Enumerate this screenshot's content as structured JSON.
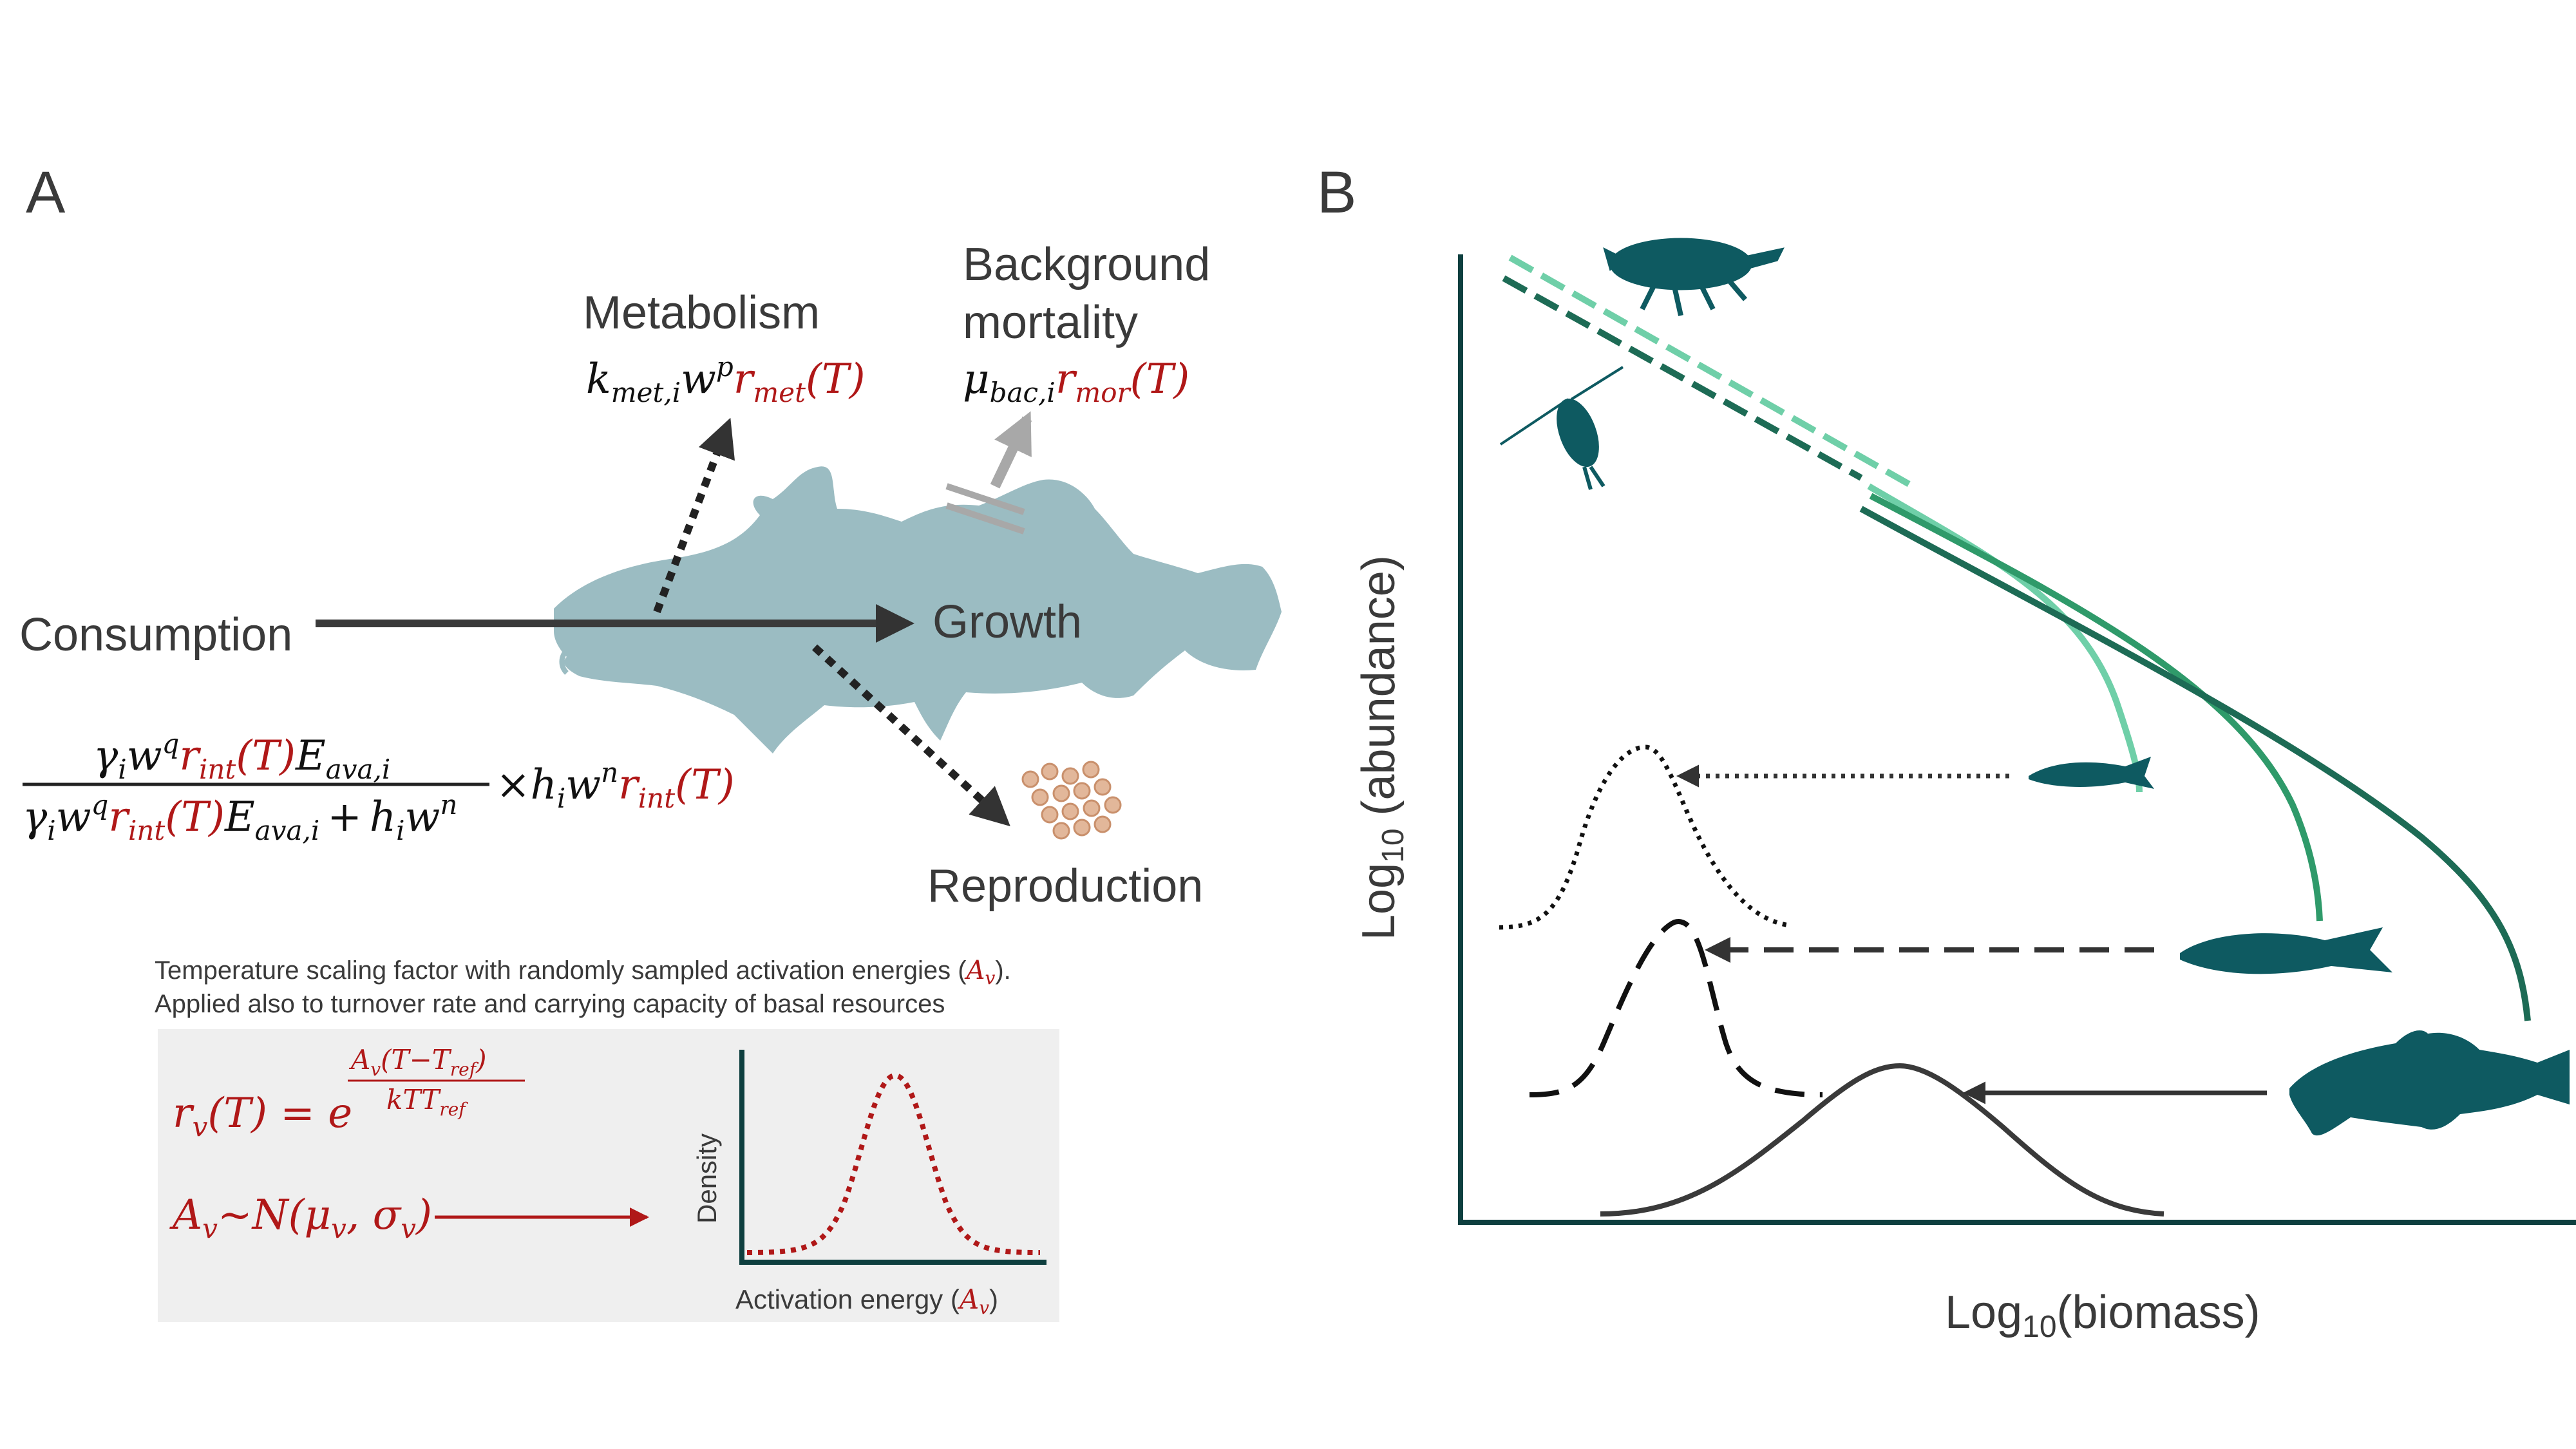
{
  "panels": {
    "a": "A",
    "b": "B"
  },
  "panel_a": {
    "consumption_label": "Consumption",
    "growth_label": "Growth",
    "metabolism_label": "Metabolism",
    "background_label_1": "Background",
    "background_label_2": "mortality",
    "reproduction_label": "Reproduction",
    "metabolism_formula": {
      "k": "k",
      "k_sub": "met,i",
      "w": "w",
      "p": "p",
      "r": "r",
      "r_sub": "met",
      "t": "(T)"
    },
    "mortality_formula": {
      "mu": "μ",
      "mu_sub": "bac,i",
      "r": "r",
      "r_sub": "mor",
      "t": "(T)"
    },
    "consumption_formula": {
      "gamma": "γ",
      "i": "i",
      "w": "w",
      "q": "q",
      "r": "r",
      "r_sub": "int",
      "t": "(T)",
      "E": "E",
      "E_sub": "ava,i",
      "plus": "+",
      "h": "h",
      "n": "n",
      "times": "×"
    },
    "temp_note_1": "Temperature scaling factor with randomly sampled activation energies (",
    "temp_note_sym": "A",
    "temp_note_sym_sub": "v",
    "temp_note_1_end": ").",
    "temp_note_2": "Applied also to turnover rate and carrying capacity of basal resources",
    "eq1": {
      "lhs": "r",
      "lhs_sub": "v",
      "lhs_t": "(T) = e",
      "num": "A",
      "num_sub": "v",
      "num_rest": "(T−T",
      "num_ref": "ref",
      "num_close": ")",
      "den": "kTT",
      "den_sub": "ref"
    },
    "eq2": {
      "a": "A",
      "a_sub": "v",
      "rest": "~N(μ",
      "mu_sub": "v",
      "comma": ", σ",
      "sigma_sub": "v",
      "close": ")"
    },
    "inset": {
      "ylabel": "Density",
      "xlabel": "Activation energy (",
      "xlabel_sym": "A",
      "xlabel_sub": "v",
      "xlabel_end": ")"
    }
  },
  "panel_b": {
    "ylabel": "Log",
    "ylabel_sub": "10",
    "ylabel_rest": " (abundance)",
    "xlabel": "Log",
    "xlabel_sub": "10",
    "xlabel_rest": "(biomass)"
  },
  "colors": {
    "fish_body": "#9bbcc2",
    "fish_dark": "#0e5a61",
    "accent_red": "#b01818",
    "line_light": "#6fcfa8",
    "line_mid": "#2f9a6a",
    "line_dark": "#1d6b55",
    "axis": "#0e3f3f",
    "panel_bg": "#efefef"
  }
}
